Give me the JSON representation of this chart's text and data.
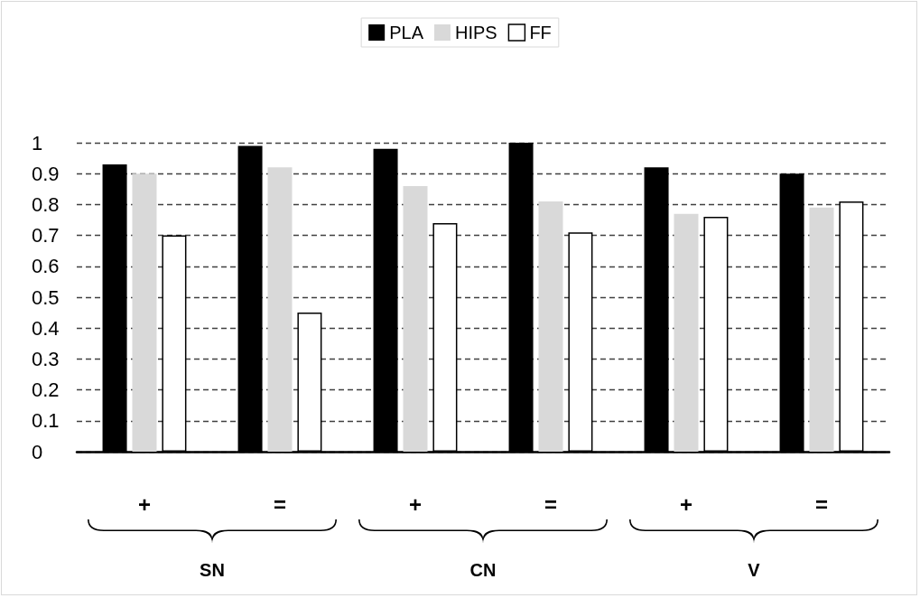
{
  "chart_data": {
    "type": "bar",
    "categories": [
      "+",
      "=",
      "+",
      "=",
      "+",
      "="
    ],
    "series": [
      {
        "name": "PLA",
        "color": "#000000",
        "values": [
          0.93,
          0.99,
          0.98,
          1.0,
          0.92,
          0.9
        ]
      },
      {
        "name": "HIPS",
        "color": "#d9d9d9",
        "values": [
          0.9,
          0.92,
          0.86,
          0.81,
          0.77,
          0.79
        ]
      },
      {
        "name": "FF",
        "color": "#ffffff",
        "values": [
          0.7,
          0.45,
          0.74,
          0.71,
          0.76,
          0.81
        ]
      }
    ],
    "ylim": [
      0,
      1
    ],
    "yticks": [
      0,
      0.1,
      0.2,
      0.3,
      0.4,
      0.5,
      0.6,
      0.7,
      0.8,
      0.9,
      1
    ],
    "grid": "y",
    "legend": "top",
    "annotations": [
      "SN",
      "CN",
      "V"
    ]
  }
}
